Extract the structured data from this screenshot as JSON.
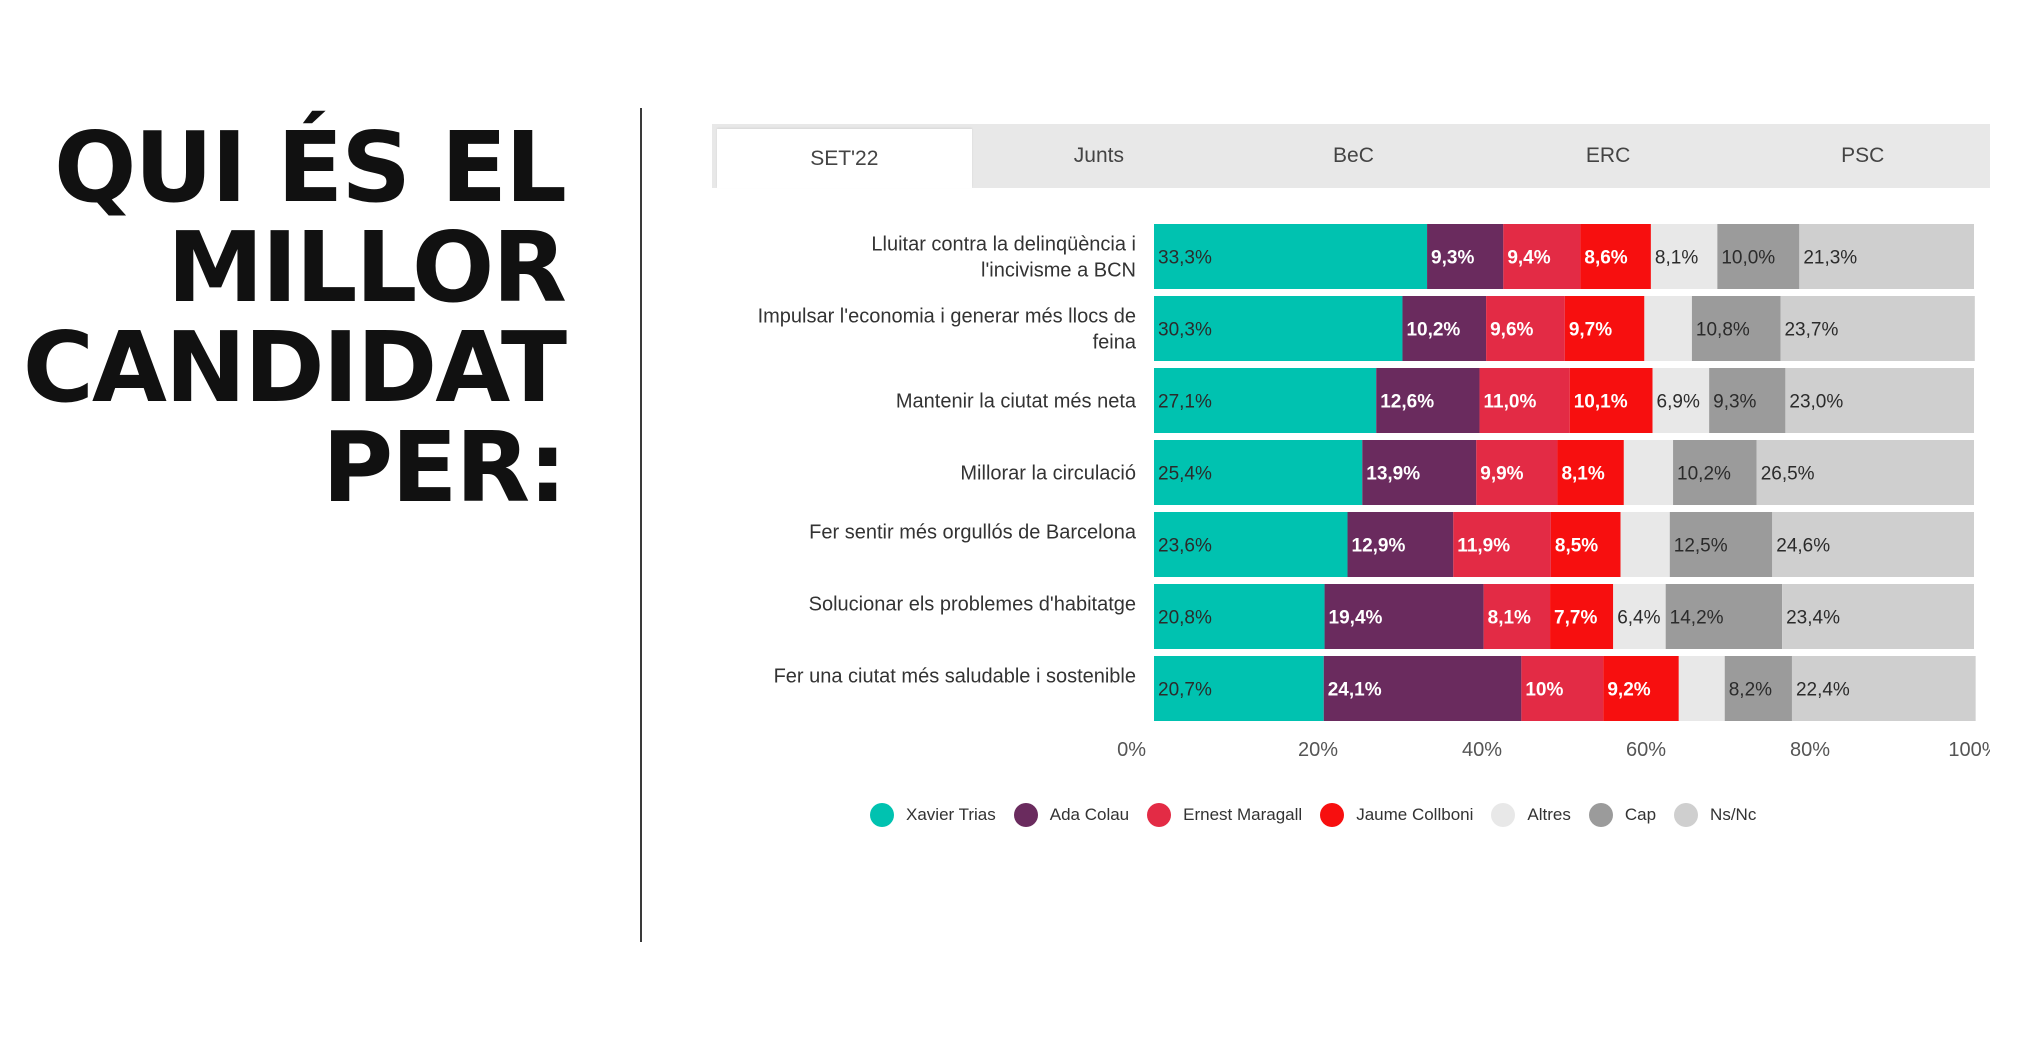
{
  "headline": {
    "lines": [
      "QUI ÉS EL",
      "MILLOR",
      "CANDIDAT",
      "PER:"
    ]
  },
  "tabs": [
    {
      "label": "SET'22",
      "active": true
    },
    {
      "label": "Junts",
      "active": false
    },
    {
      "label": "BeC",
      "active": false
    },
    {
      "label": "ERC",
      "active": false
    },
    {
      "label": "PSC",
      "active": false
    }
  ],
  "chart_data": {
    "type": "bar",
    "orientation": "horizontal",
    "stacked": true,
    "categories": [
      "Lluitar contra la delinqüència i l'incivisme a BCN",
      "Impulsar l'economia i generar més llocs de feina",
      "Mantenir la ciutat més neta",
      "Millorar la circulació",
      "Fer sentir més orgullós de Barcelona",
      "Solucionar els problemes d'habitatge",
      "Fer una ciutat més saludable i sostenible"
    ],
    "series": [
      {
        "name": "Xavier Trias",
        "color": "#00c2b0",
        "label_color": "#2b2b2b",
        "values": [
          33.3,
          30.3,
          27.1,
          25.4,
          23.6,
          20.8,
          20.7
        ],
        "labels": [
          "33,3%",
          "30,3%",
          "27,1%",
          "25,4%",
          "23,6%",
          "20,8%",
          "20,7%"
        ]
      },
      {
        "name": "Ada Colau",
        "color": "#6a2b5e",
        "label_color": "#ffffff",
        "values": [
          9.3,
          10.2,
          12.6,
          13.9,
          12.9,
          19.4,
          24.1
        ],
        "labels": [
          "9,3%",
          "10,2%",
          "12,6%",
          "13,9%",
          "12,9%",
          "19,4%",
          "24,1%"
        ]
      },
      {
        "name": "Ernest Maragall",
        "color": "#e32b45",
        "label_color": "#ffffff",
        "values": [
          9.4,
          9.6,
          11.0,
          9.9,
          11.9,
          8.1,
          10.0
        ],
        "labels": [
          "9,4%",
          "9,6%",
          "11,0%",
          "9,9%",
          "11,9%",
          "8,1%",
          "10%"
        ]
      },
      {
        "name": "Jaume Collboni",
        "color": "#f70f0f",
        "label_color": "#ffffff",
        "values": [
          8.6,
          9.7,
          10.1,
          8.1,
          8.5,
          7.7,
          9.2
        ],
        "labels": [
          "8,6%",
          "9,7%",
          "10,1%",
          "8,1%",
          "8,5%",
          "7,7%",
          "9,2%"
        ]
      },
      {
        "name": "Altres",
        "color": "#e8e8e8",
        "label_color": "#2b2b2b",
        "values": [
          8.1,
          5.8,
          6.9,
          6.0,
          6.0,
          6.4,
          5.6
        ],
        "labels": [
          "8,1%",
          "",
          "6,9%",
          "",
          "",
          "6,4%",
          ""
        ]
      },
      {
        "name": "Cap",
        "color": "#9b9b9b",
        "label_color": "#2b2b2b",
        "values": [
          10.0,
          10.8,
          9.3,
          10.2,
          12.5,
          14.2,
          8.2
        ],
        "labels": [
          "10,0%",
          "10,8%",
          "9,3%",
          "10,2%",
          "12,5%",
          "14,2%",
          "8,2%"
        ]
      },
      {
        "name": "Ns/Nc",
        "color": "#cfcfcf",
        "label_color": "#2b2b2b",
        "values": [
          21.3,
          23.7,
          23.0,
          26.5,
          24.6,
          23.4,
          22.4
        ],
        "labels": [
          "21,3%",
          "23,7%",
          "23,0%",
          "26,5%",
          "24,6%",
          "23,4%",
          "22,4%"
        ]
      }
    ],
    "xlim": [
      0,
      100
    ],
    "x_ticks": [
      0,
      20,
      40,
      60,
      80,
      100
    ],
    "x_tick_labels": [
      "0%",
      "20%",
      "40%",
      "60%",
      "80%",
      "100%"
    ],
    "legend_position": "bottom",
    "grid": false
  }
}
